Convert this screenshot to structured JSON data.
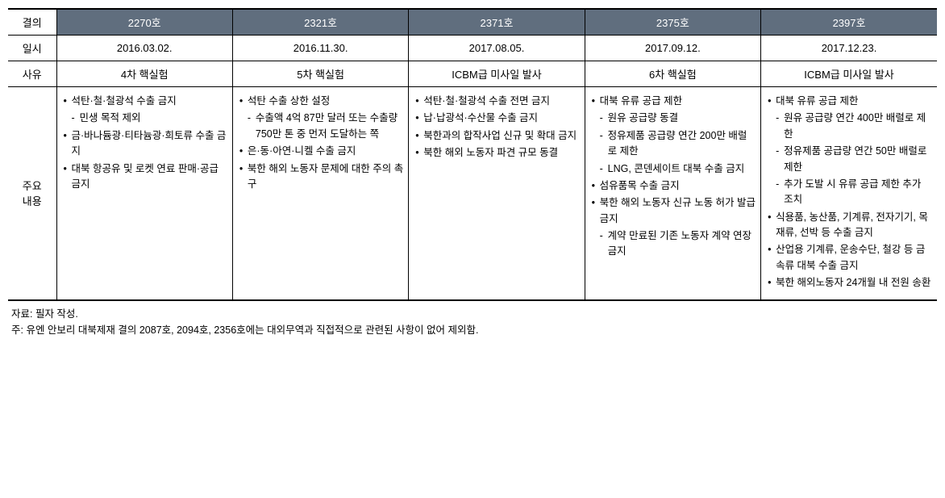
{
  "labels": {
    "resolution": "결의",
    "date": "일시",
    "reason": "사유",
    "main_content": "주요\n내용"
  },
  "columns": [
    {
      "resolution": "2270호",
      "date": "2016.03.02.",
      "reason": "4차 핵실험",
      "content": [
        {
          "t": "석탄·철·철광석 수출 금지",
          "sub": false
        },
        {
          "t": "민생 목적 제외",
          "sub": true
        },
        {
          "t": "금·바나듐광·티타늄광·희토류 수출 금지",
          "sub": false
        },
        {
          "t": "대북 항공유 및 로켓 연료 판매·공급 금지",
          "sub": false
        }
      ]
    },
    {
      "resolution": "2321호",
      "date": "2016.11.30.",
      "reason": "5차 핵실험",
      "content": [
        {
          "t": "석탄 수출 상한 설정",
          "sub": false
        },
        {
          "t": "수출액 4억 87만 달러 또는 수출량 750만 톤 중 먼저 도달하는 쪽",
          "sub": true
        },
        {
          "t": "은·동·아연·니켈 수출 금지",
          "sub": false
        },
        {
          "t": "북한 해외 노동자 문제에 대한 주의 촉구",
          "sub": false
        }
      ]
    },
    {
      "resolution": "2371호",
      "date": "2017.08.05.",
      "reason": "ICBM급 미사일 발사",
      "content": [
        {
          "t": "석탄·철·철광석 수출 전면 금지",
          "sub": false
        },
        {
          "t": "납·납광석·수산물 수출 금지",
          "sub": false
        },
        {
          "t": "북한과의 합작사업 신규 및 확대 금지",
          "sub": false
        },
        {
          "t": "북한 해외 노동자 파견 규모 동결",
          "sub": false
        }
      ]
    },
    {
      "resolution": "2375호",
      "date": "2017.09.12.",
      "reason": "6차 핵실험",
      "content": [
        {
          "t": "대북 유류 공급 제한",
          "sub": false
        },
        {
          "t": "원유 공급량 동결",
          "sub": true
        },
        {
          "t": "정유제품 공급량 연간 200만 배럴로 제한",
          "sub": true
        },
        {
          "t": "LNG, 콘덴세이트 대북 수출 금지",
          "sub": true
        },
        {
          "t": "섬유품목 수출 금지",
          "sub": false
        },
        {
          "t": "북한 해외 노동자 신규 노동 허가 발급 금지",
          "sub": false
        },
        {
          "t": "계약 만료된 기존 노동자 계약 연장 금지",
          "sub": true
        }
      ]
    },
    {
      "resolution": "2397호",
      "date": "2017.12.23.",
      "reason": "ICBM급 미사일 발사",
      "content": [
        {
          "t": "대북 유류 공급 제한",
          "sub": false
        },
        {
          "t": "원유 공급량 연간 400만 배럴로 제한",
          "sub": true
        },
        {
          "t": "정유제품 공급량 연간 50만 배럴로 제한",
          "sub": true
        },
        {
          "t": "추가 도발 시 유류 공급 제한 추가 조치",
          "sub": true
        },
        {
          "t": "식용품, 농산품, 기계류, 전자기기, 목재류, 선박 등 수출 금지",
          "sub": false
        },
        {
          "t": "산업용 기계류, 운송수단, 철강 등 금속류 대북 수출 금지",
          "sub": false
        },
        {
          "t": "북한 해외노동자 24개월 내 전원 송환",
          "sub": false
        }
      ]
    }
  ],
  "footnotes": {
    "source": "자료: 필자 작성.",
    "note": "주: 유엔 안보리 대북제재 결의 2087호, 2094호, 2356호에는 대외무역과 직접적으로 관련된 사항이 없어 제외함."
  },
  "style": {
    "header_bg": "#606e7e",
    "header_fg": "#ffffff",
    "border_color": "#000000",
    "font_size_base": 13,
    "font_size_content": 12.5
  }
}
